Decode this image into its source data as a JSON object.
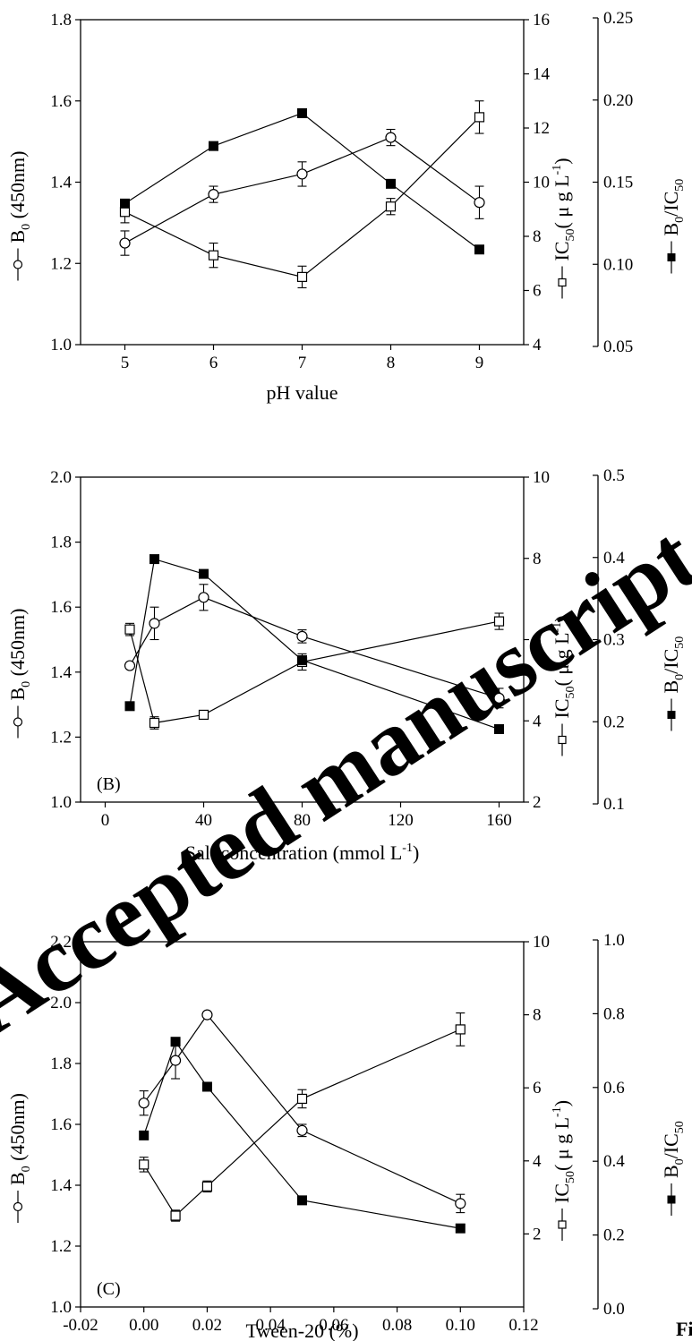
{
  "watermark": "Accepted manuscript",
  "corner_text": "Fi",
  "chart_data": [
    {
      "type": "line",
      "panel_label": "",
      "xlabel": "pH value",
      "x": [
        5,
        6,
        7,
        8,
        9
      ],
      "xlim": [
        4.5,
        9.5
      ],
      "xticks": [
        "5",
        "6",
        "7",
        "8",
        "9"
      ],
      "y1label": "B",
      "y1label_sub": "0",
      "y1label_suffix": " (450nm)",
      "y1lim": [
        1.0,
        1.8
      ],
      "y1ticks": [
        "1.0",
        "1.2",
        "1.4",
        "1.6",
        "1.8"
      ],
      "y2label": "IC",
      "y2label_sub": "50",
      "y2label_suffix": "( μ g L",
      "y2label_sup": "-1",
      "y2label_close": ")",
      "y2lim": [
        4,
        16
      ],
      "y2ticks": [
        "4",
        "6",
        "8",
        "10",
        "12",
        "14",
        "16"
      ],
      "y3label": "B",
      "y3label_sub": "0",
      "y3label_mid": "/IC",
      "y3label_sub2": "50",
      "y3lim": [
        0.05,
        0.25
      ],
      "y3ticks": [
        "0.05",
        "0.10",
        "0.15",
        "0.20",
        "0.25"
      ],
      "grid": false,
      "series": [
        {
          "marker": "open-circle",
          "axis": "y1",
          "values": [
            1.25,
            1.37,
            1.42,
            1.51,
            1.35
          ],
          "errors": [
            0.03,
            0.02,
            0.03,
            0.02,
            0.04
          ]
        },
        {
          "marker": "open-square",
          "axis": "y2",
          "values": [
            8.9,
            7.3,
            6.5,
            9.1,
            12.4
          ],
          "errors": [
            0.4,
            0.45,
            0.4,
            0.3,
            0.6
          ]
        },
        {
          "marker": "filled-square",
          "axis": "y3",
          "values": [
            0.137,
            0.172,
            0.192,
            0.149,
            0.109
          ],
          "errors": []
        }
      ]
    },
    {
      "type": "line",
      "panel_label": "(B)",
      "xlabel": "Salt concentration (mmol L",
      "xlabel_sup": "-1",
      "xlabel_close": ")",
      "x": [
        10,
        20,
        40,
        80,
        160
      ],
      "xlim": [
        -10,
        170
      ],
      "xticks": [
        "0",
        "40",
        "80",
        "120",
        "160"
      ],
      "y1label": "B",
      "y1label_sub": "0",
      "y1label_suffix": " (450nm)",
      "y1lim": [
        1.0,
        2.0
      ],
      "y1ticks": [
        "1.0",
        "1.2",
        "1.4",
        "1.6",
        "1.8",
        "2.0"
      ],
      "y2label": "IC",
      "y2label_sub": "50",
      "y2label_suffix": "( μ g L",
      "y2label_sup": "-1",
      "y2label_close": ")",
      "y2lim": [
        2,
        10
      ],
      "y2ticks": [
        "2",
        "4",
        "6",
        "8",
        "10"
      ],
      "y3label": "B",
      "y3label_sub": "0",
      "y3label_mid": "/IC",
      "y3label_sub2": "50",
      "y3lim": [
        0.1,
        0.5
      ],
      "y3ticks": [
        "0.1",
        "0.2",
        "0.3",
        "0.4",
        "0.5"
      ],
      "grid": false,
      "series": [
        {
          "marker": "open-circle",
          "axis": "y1",
          "values": [
            1.42,
            1.55,
            1.63,
            1.51,
            1.32
          ],
          "errors": [
            0.0,
            0.05,
            0.04,
            0.02,
            0.03
          ]
        },
        {
          "marker": "open-square",
          "axis": "y2",
          "values": [
            6.25,
            3.95,
            4.15,
            5.45,
            6.45
          ],
          "errors": [
            0.15,
            0.15,
            0.08,
            0.2,
            0.2
          ]
        },
        {
          "marker": "filled-square",
          "axis": "y3",
          "values": [
            0.219,
            0.398,
            0.38,
            0.275,
            0.191
          ],
          "errors": []
        }
      ]
    },
    {
      "type": "line",
      "panel_label": "(C)",
      "xlabel": "Tween-20 (%)",
      "x": [
        0.0,
        0.01,
        0.02,
        0.05,
        0.1
      ],
      "xlim": [
        -0.02,
        0.12
      ],
      "xticks": [
        "-0.02",
        "0.00",
        "0.02",
        "0.04",
        "0.06",
        "0.08",
        "0.10",
        "0.12"
      ],
      "y1label": "B",
      "y1label_sub": "0",
      "y1label_suffix": " (450nm)",
      "y1lim": [
        1.0,
        2.2
      ],
      "y1ticks": [
        "1.0",
        "1.2",
        "1.4",
        "1.6",
        "1.8",
        "2.0",
        "2.2"
      ],
      "y2label": "IC",
      "y2label_sub": "50",
      "y2label_suffix": "( μ g L",
      "y2label_sup": "-1",
      "y2label_close": ")",
      "y2lim": [
        0,
        10
      ],
      "y2ticks": [
        "2",
        "4",
        "6",
        "8",
        "10"
      ],
      "y3label": "B",
      "y3label_sub": "0",
      "y3label_mid": "/IC",
      "y3label_sub2": "50",
      "y3lim": [
        0.0,
        1.0
      ],
      "y3ticks": [
        "0.0",
        "0.2",
        "0.4",
        "0.6",
        "0.8",
        "1.0"
      ],
      "grid": false,
      "series": [
        {
          "marker": "open-circle",
          "axis": "y1",
          "values": [
            1.67,
            1.81,
            1.96,
            1.58,
            1.34
          ],
          "errors": [
            0.04,
            0.06,
            0.0,
            0.02,
            0.03
          ]
        },
        {
          "marker": "open-square",
          "axis": "y2",
          "values": [
            3.9,
            2.5,
            3.3,
            5.7,
            7.6
          ],
          "errors": [
            0.2,
            0.15,
            0.15,
            0.25,
            0.45
          ]
        },
        {
          "marker": "filled-square",
          "axis": "y3",
          "values": [
            0.47,
            0.724,
            0.602,
            0.294,
            0.218
          ],
          "errors": []
        }
      ]
    }
  ]
}
